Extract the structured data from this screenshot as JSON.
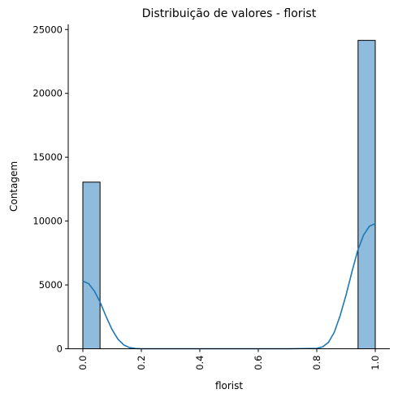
{
  "chart_data": {
    "type": "bar",
    "title": "Distribuição de valores - florist",
    "xlabel": "florist",
    "ylabel": "Contagem",
    "xlim": [
      -0.05,
      1.05
    ],
    "ylim": [
      0,
      25400
    ],
    "x_ticks": [
      "0.0",
      "0.2",
      "0.4",
      "0.6",
      "0.8",
      "1.0"
    ],
    "y_ticks": [
      "0",
      "5000",
      "10000",
      "15000",
      "20000",
      "25000"
    ],
    "bin_width": 0.0588,
    "bins": [
      {
        "x0": 0.0,
        "x1": 0.0588,
        "value": 13050
      },
      {
        "x0": 0.9412,
        "x1": 1.0,
        "value": 24150
      }
    ],
    "kde": {
      "x": [
        0.0,
        0.02,
        0.04,
        0.06,
        0.08,
        0.1,
        0.12,
        0.14,
        0.16,
        0.18,
        0.2,
        0.3,
        0.4,
        0.5,
        0.6,
        0.7,
        0.8,
        0.82,
        0.84,
        0.86,
        0.88,
        0.9,
        0.92,
        0.94,
        0.96,
        0.98,
        1.0
      ],
      "y": [
        5300,
        5100,
        4500,
        3600,
        2500,
        1500,
        750,
        300,
        90,
        20,
        0,
        0,
        0,
        0,
        0,
        0,
        30,
        150,
        500,
        1300,
        2600,
        4200,
        6000,
        7700,
        8900,
        9600,
        9800
      ]
    },
    "bar_color": "#8fbbdc",
    "bar_edge_color": "#000000",
    "kde_color": "#1f77b4",
    "grid": false,
    "legend": "none"
  }
}
